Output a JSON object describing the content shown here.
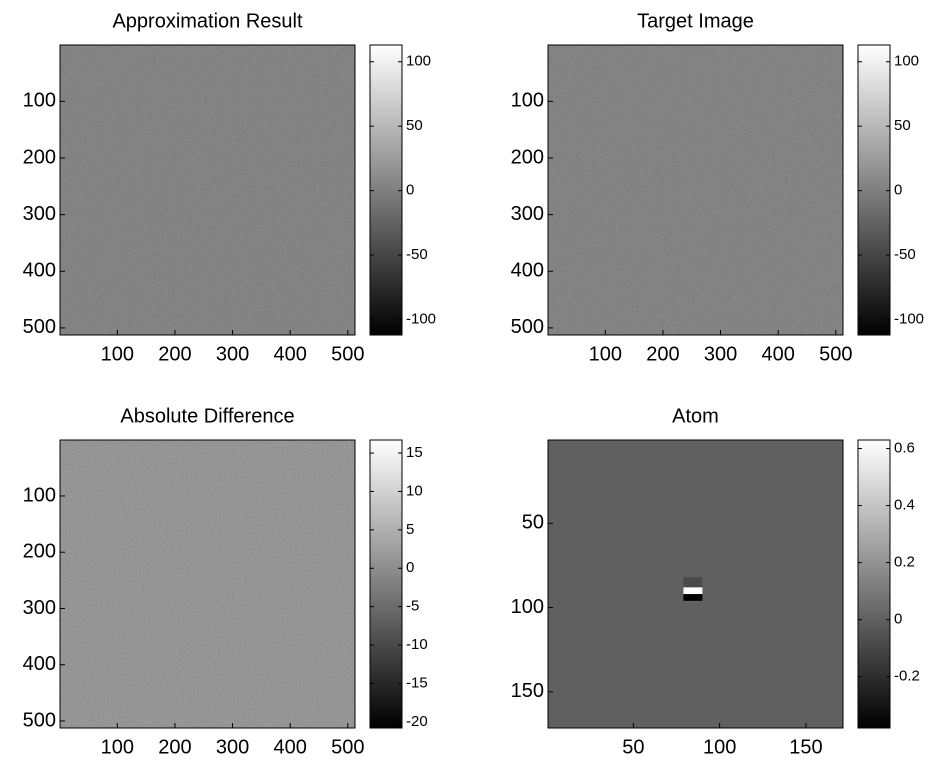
{
  "chart_data": [
    {
      "type": "image",
      "title": "Approximation Result",
      "colormap": "gray",
      "y_reversed": true,
      "xlim": [
        0.5,
        512.5
      ],
      "ylim": [
        0.5,
        512.5
      ],
      "xticks": [
        100,
        200,
        300,
        400,
        500
      ],
      "yticks": [
        100,
        200,
        300,
        400,
        500
      ],
      "clim": [
        -112,
        113
      ],
      "cticks": [
        100,
        50,
        0,
        -50,
        -100
      ]
    },
    {
      "type": "image",
      "title": "Target Image",
      "colormap": "gray",
      "y_reversed": true,
      "xlim": [
        0.5,
        512.5
      ],
      "ylim": [
        0.5,
        512.5
      ],
      "xticks": [
        100,
        200,
        300,
        400,
        500
      ],
      "yticks": [
        100,
        200,
        300,
        400,
        500
      ],
      "clim": [
        -112,
        113
      ],
      "cticks": [
        100,
        50,
        0,
        -50,
        -100
      ]
    },
    {
      "type": "image",
      "title": "Absolute Difference",
      "colormap": "gray",
      "y_reversed": true,
      "xlim": [
        0.5,
        512.5
      ],
      "ylim": [
        0.5,
        512.5
      ],
      "xticks": [
        100,
        200,
        300,
        400,
        500
      ],
      "yticks": [
        100,
        200,
        300,
        400,
        500
      ],
      "clim": [
        -20.8,
        16.7
      ],
      "cticks": [
        15,
        10,
        5,
        0,
        -5,
        -10,
        -15,
        -20
      ]
    },
    {
      "type": "image",
      "title": "Atom",
      "colormap": "gray",
      "y_reversed": true,
      "xlim": [
        0.5,
        171.5
      ],
      "ylim": [
        0.5,
        171.5
      ],
      "xticks": [
        50,
        100,
        150
      ],
      "yticks": [
        50,
        100,
        150
      ],
      "clim": [
        -0.38,
        0.63
      ],
      "cticks": [
        0.6,
        0.4,
        0.2,
        0,
        -0.2
      ]
    }
  ]
}
